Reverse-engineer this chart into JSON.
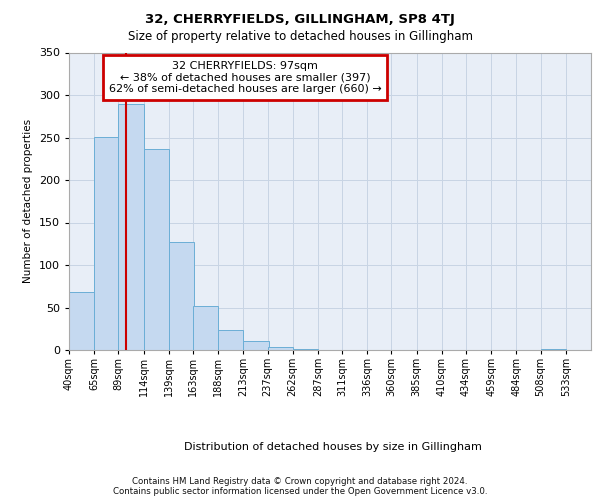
{
  "title": "32, CHERRYFIELDS, GILLINGHAM, SP8 4TJ",
  "subtitle": "Size of property relative to detached houses in Gillingham",
  "xlabel": "Distribution of detached houses by size in Gillingham",
  "ylabel": "Number of detached properties",
  "footer_line1": "Contains HM Land Registry data © Crown copyright and database right 2024.",
  "footer_line2": "Contains public sector information licensed under the Open Government Licence v3.0.",
  "bin_labels": [
    "40sqm",
    "65sqm",
    "89sqm",
    "114sqm",
    "139sqm",
    "163sqm",
    "188sqm",
    "213sqm",
    "237sqm",
    "262sqm",
    "287sqm",
    "311sqm",
    "336sqm",
    "360sqm",
    "385sqm",
    "410sqm",
    "434sqm",
    "459sqm",
    "484sqm",
    "508sqm",
    "533sqm"
  ],
  "bar_values": [
    68,
    251,
    289,
    236,
    127,
    52,
    23,
    11,
    4,
    1,
    0,
    0,
    0,
    0,
    0,
    0,
    0,
    0,
    0,
    1
  ],
  "bar_color": "#c5d9f0",
  "bar_edge_color": "#6baed6",
  "grid_color": "#c8d4e4",
  "background_color": "#e8eef7",
  "property_line_x": 97,
  "bin_edges": [
    40,
    65,
    89,
    114,
    139,
    163,
    188,
    213,
    237,
    262,
    287,
    311,
    336,
    360,
    385,
    410,
    434,
    459,
    484,
    508,
    533
  ],
  "bin_width": 25,
  "annotation_line1": "32 CHERRYFIELDS: 97sqm",
  "annotation_line2": "← 38% of detached houses are smaller (397)",
  "annotation_line3": "62% of semi-detached houses are larger (660) →",
  "annotation_box_edgecolor": "#cc0000",
  "vline_color": "#cc0000",
  "ylim": [
    0,
    350
  ],
  "yticks": [
    0,
    50,
    100,
    150,
    200,
    250,
    300,
    350
  ]
}
